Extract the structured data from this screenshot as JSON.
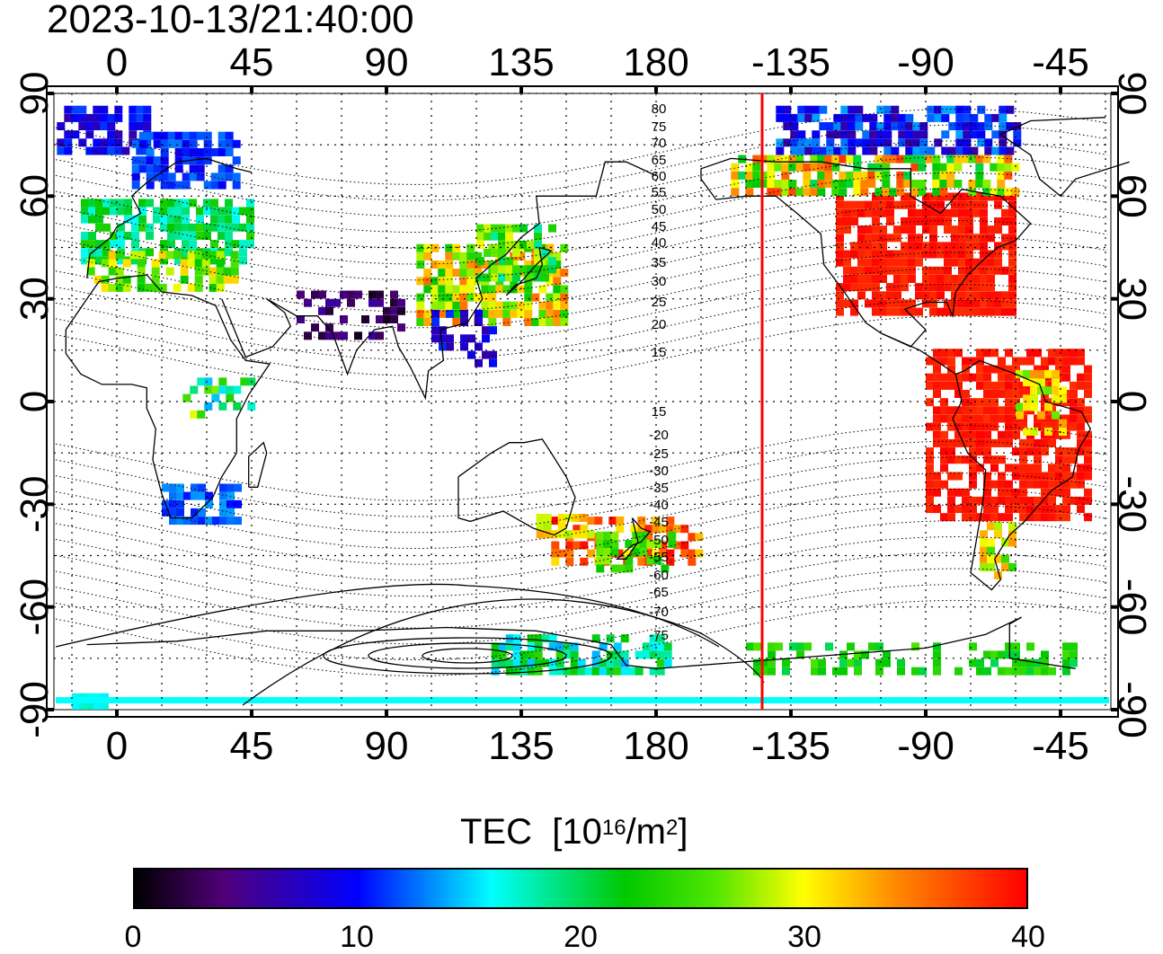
{
  "title": "2023-10-13/21:40:00",
  "map": {
    "top_axis_labels": [
      "0",
      "45",
      "90",
      "135",
      "180",
      "-135",
      "-90",
      "-45"
    ],
    "bottom_axis_labels": [
      "0",
      "45",
      "90",
      "135",
      "180",
      "-135",
      "-90",
      "-45"
    ],
    "left_axis_labels": [
      "90",
      "60",
      "30",
      "0",
      "-30",
      "-60",
      "-90"
    ],
    "right_axis_labels": [
      "90",
      "60",
      "30",
      "0",
      "-30",
      "-60",
      "-90"
    ],
    "magnetic_latitude_labels": [
      "80",
      "75",
      "70",
      "65",
      "60",
      "55",
      "50",
      "45",
      "40",
      "35",
      "30",
      "25",
      "20",
      "15",
      "15",
      "-20",
      "-25",
      "-30",
      "-35",
      "-40",
      "-45",
      "-50",
      "-55",
      "-60",
      "-65",
      "-70",
      "-75"
    ],
    "terminator_color": "#ff0000"
  },
  "colorbar": {
    "label": "TEC",
    "unit_prefix": "[10",
    "unit_exp1": "16",
    "unit_mid": "/m",
    "unit_exp2": "2",
    "unit_suffix": "]",
    "tick_labels": [
      "0",
      "10",
      "20",
      "30",
      "40"
    ],
    "min": 0,
    "max": 40
  }
}
